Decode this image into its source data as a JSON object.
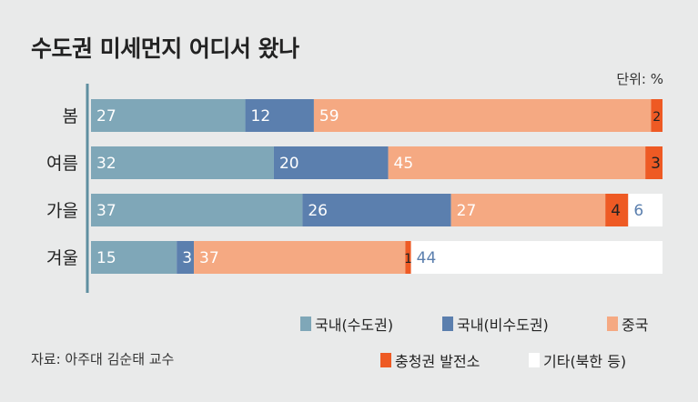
{
  "title": "수도권 미세먼지 어디서 왔나",
  "unit_label": "단위: %",
  "source": "자료: 아주대 김순태 교수",
  "chart_data": {
    "type": "bar",
    "orientation": "horizontal",
    "stacked": true,
    "categories": [
      "봄",
      "여름",
      "가을",
      "겨울"
    ],
    "series": [
      {
        "name": "국내(수도권)",
        "color": "#7fa7b8",
        "values": [
          27,
          32,
          37,
          15
        ],
        "label_color": "#ffffff"
      },
      {
        "name": "국내(비수도권)",
        "color": "#5b7fae",
        "values": [
          12,
          20,
          26,
          3
        ],
        "label_color": "#ffffff"
      },
      {
        "name": "중국",
        "color": "#f5a982",
        "values": [
          59,
          45,
          27,
          37
        ],
        "label_color": "#ffffff"
      },
      {
        "name": "충청권 발전소",
        "color": "#ee5a24",
        "values": [
          2,
          3,
          4,
          1
        ],
        "label_color": "#222222"
      },
      {
        "name": "기타(북한 등)",
        "color": "#ffffff",
        "values": [
          0,
          0,
          6,
          44
        ],
        "label_color": "#5b7fae"
      }
    ],
    "xlim": [
      0,
      100
    ],
    "grid": false,
    "legend_position": "bottom-right"
  }
}
